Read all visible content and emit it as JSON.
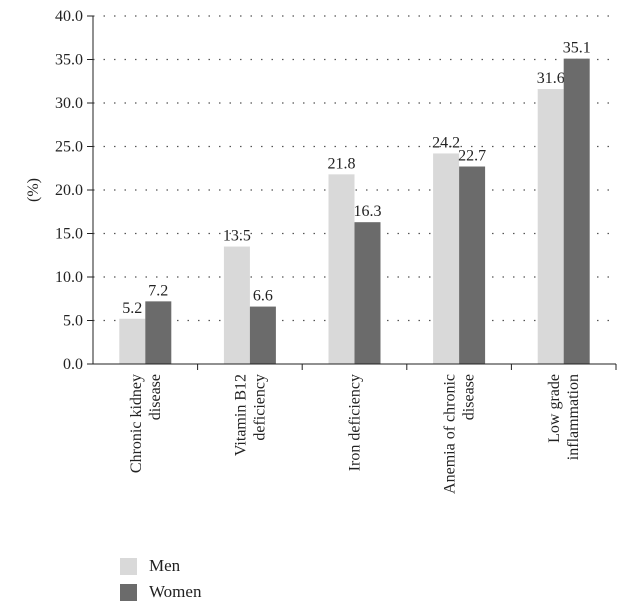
{
  "chart_data": {
    "type": "bar",
    "categories": [
      [
        "Chronic kidney",
        "disease"
      ],
      [
        "Vitamin B12",
        "deficiency"
      ],
      [
        "Iron deficiency"
      ],
      [
        "Anemia of chronic",
        "disease"
      ],
      [
        "Low grade",
        "inflammation"
      ]
    ],
    "series": [
      {
        "name": "Men",
        "color": "#d9d9d9",
        "values": [
          5.2,
          13.5,
          21.8,
          24.2,
          31.6
        ]
      },
      {
        "name": "Women",
        "color": "#6b6b6b",
        "values": [
          7.2,
          6.6,
          16.3,
          22.7,
          35.1
        ]
      }
    ],
    "ylabel": "(%)",
    "ylim": [
      0,
      40
    ],
    "yticks": [
      "0.0",
      "5.0",
      "10.0",
      "15.0",
      "20.0",
      "25.0",
      "30.0",
      "35.0",
      "40.0"
    ],
    "grid": "dotted horizontal",
    "legend": "bottom-left"
  }
}
